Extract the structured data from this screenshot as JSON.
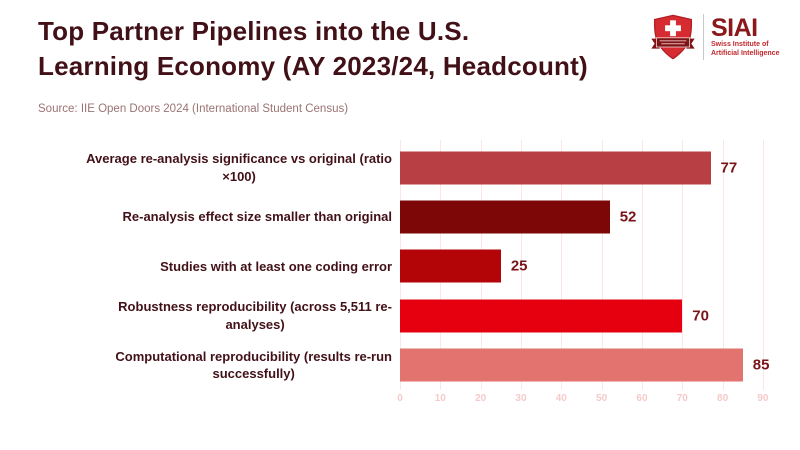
{
  "header": {
    "title_lines": [
      "Top Partner Pipelines into the U.S.",
      "Learning Economy (AY 2023/24, Headcount)"
    ],
    "title_color": "#421118",
    "source": "Source: IIE Open Doors 2024 (International Student Census)"
  },
  "logo": {
    "acronym": "SIAI",
    "subtitle_line1": "Swiss Institute of",
    "subtitle_line2": "Artificial Intelligence",
    "shield_icon": "swiss-shield-cross-icon",
    "colors": {
      "acronym": "#8b181b",
      "subtitle": "#c1272d",
      "shield": "#d62b30",
      "shield_border": "#b01e24",
      "ribbon": "#7e1416",
      "cross": "#ffffff"
    }
  },
  "chart_data": {
    "type": "bar",
    "orientation": "horizontal",
    "title": "Top Partner Pipelines into the U.S. Learning Economy (AY 2023/24, Headcount)",
    "subtitle": "Source: IIE Open Doors 2024 (International Student Census)",
    "categories": [
      "Average re-analysis significance vs original (ratio ×100)",
      "Re-analysis effect size smaller than original",
      "Studies with at least one coding error",
      "Robustness reproducibility (across 5,511 re-analyses)",
      "Computational reproducibility (results re-run successfully)"
    ],
    "category_lines": [
      [
        "Average re-analysis significance vs original (ratio",
        "×100)"
      ],
      [
        "Re-analysis effect size smaller than original"
      ],
      [
        "Studies with at least one coding error"
      ],
      [
        "Robustness reproducibility (across 5,511 re-",
        "analyses)"
      ],
      [
        "Computational reproducibility (results re-run",
        "successfully)"
      ]
    ],
    "values": [
      77,
      52,
      25,
      70,
      85
    ],
    "bar_colors": [
      "#b84045",
      "#7d0606",
      "#b30408",
      "#e6000f",
      "#e2736e"
    ],
    "value_label_color": "#7a1418",
    "category_label_color": "#421118",
    "xlabel": "",
    "ylabel": "",
    "xticks": [
      0,
      10,
      20,
      30,
      40,
      50,
      60,
      70,
      80,
      90
    ],
    "xlim": [
      0,
      92
    ],
    "grid": true,
    "gridline_color": "#fbe6e6",
    "tick_label_color": "#f5caca",
    "legend": false
  }
}
